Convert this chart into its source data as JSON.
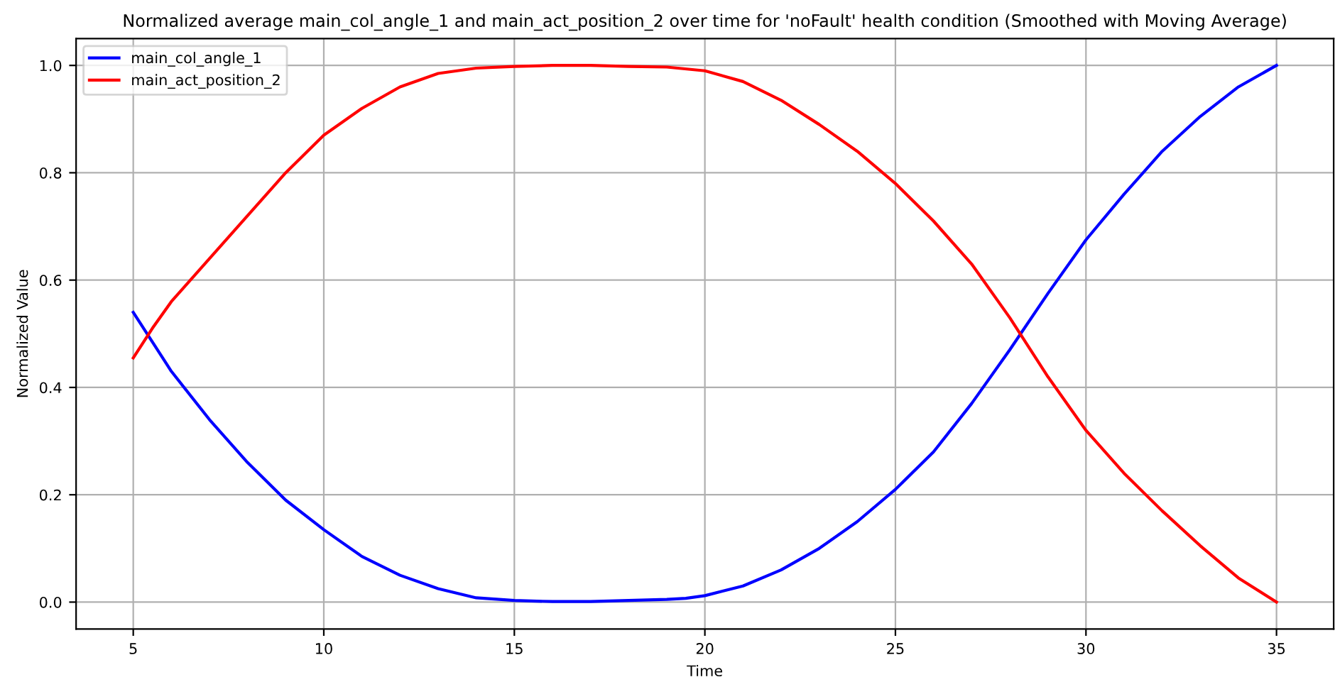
{
  "chart_data": {
    "type": "line",
    "title": "Normalized average main_col_angle_1 and main_act_position_2 over time for 'noFault' health condition (Smoothed with Moving Average)",
    "xlabel": "Time",
    "ylabel": "Normalized Value",
    "xlim": [
      3.5,
      36.5
    ],
    "ylim": [
      -0.05,
      1.05
    ],
    "xticks": [
      5,
      10,
      15,
      20,
      25,
      30,
      35
    ],
    "yticks": [
      {
        "value": 0,
        "label": "0.0"
      },
      {
        "value": 0.2,
        "label": "0.2"
      },
      {
        "value": 0.4,
        "label": "0.4"
      },
      {
        "value": 0.6,
        "label": "0.6"
      },
      {
        "value": 0.8,
        "label": "0.8"
      },
      {
        "value": 1,
        "label": "1.0"
      }
    ],
    "grid": true,
    "legend": "top left",
    "marker": "none",
    "line_style": "solid",
    "series": [
      {
        "name": "main_col_angle_1",
        "color": "#0000ff",
        "x": [
          5,
          6,
          7,
          8,
          9,
          10,
          11,
          12,
          13,
          14,
          15,
          16,
          17,
          18,
          19,
          19.5,
          20,
          21,
          22,
          23,
          24,
          25,
          26,
          27,
          28,
          29,
          30,
          31,
          32,
          33,
          34,
          35
        ],
        "values": [
          0.54,
          0.43,
          0.34,
          0.26,
          0.19,
          0.135,
          0.085,
          0.05,
          0.025,
          0.008,
          0.003,
          0.001,
          0.001,
          0.003,
          0.005,
          0.007,
          0.012,
          0.03,
          0.06,
          0.1,
          0.15,
          0.21,
          0.28,
          0.37,
          0.47,
          0.575,
          0.675,
          0.76,
          0.84,
          0.905,
          0.96,
          1.0
        ]
      },
      {
        "name": "main_act_position_2",
        "color": "#ff0000",
        "x": [
          5,
          5.5,
          6,
          7,
          8,
          9,
          10,
          11,
          12,
          13,
          14,
          15,
          16,
          17,
          18,
          19,
          20,
          21,
          22,
          23,
          24,
          25,
          26,
          27,
          28,
          29,
          30,
          31,
          32,
          33,
          34,
          35
        ],
        "values": [
          0.455,
          0.51,
          0.56,
          0.64,
          0.72,
          0.8,
          0.87,
          0.92,
          0.96,
          0.985,
          0.995,
          0.998,
          1.0,
          1.0,
          0.998,
          0.997,
          0.99,
          0.97,
          0.935,
          0.89,
          0.84,
          0.78,
          0.71,
          0.63,
          0.53,
          0.42,
          0.32,
          0.24,
          0.17,
          0.105,
          0.045,
          0.0
        ]
      }
    ]
  }
}
